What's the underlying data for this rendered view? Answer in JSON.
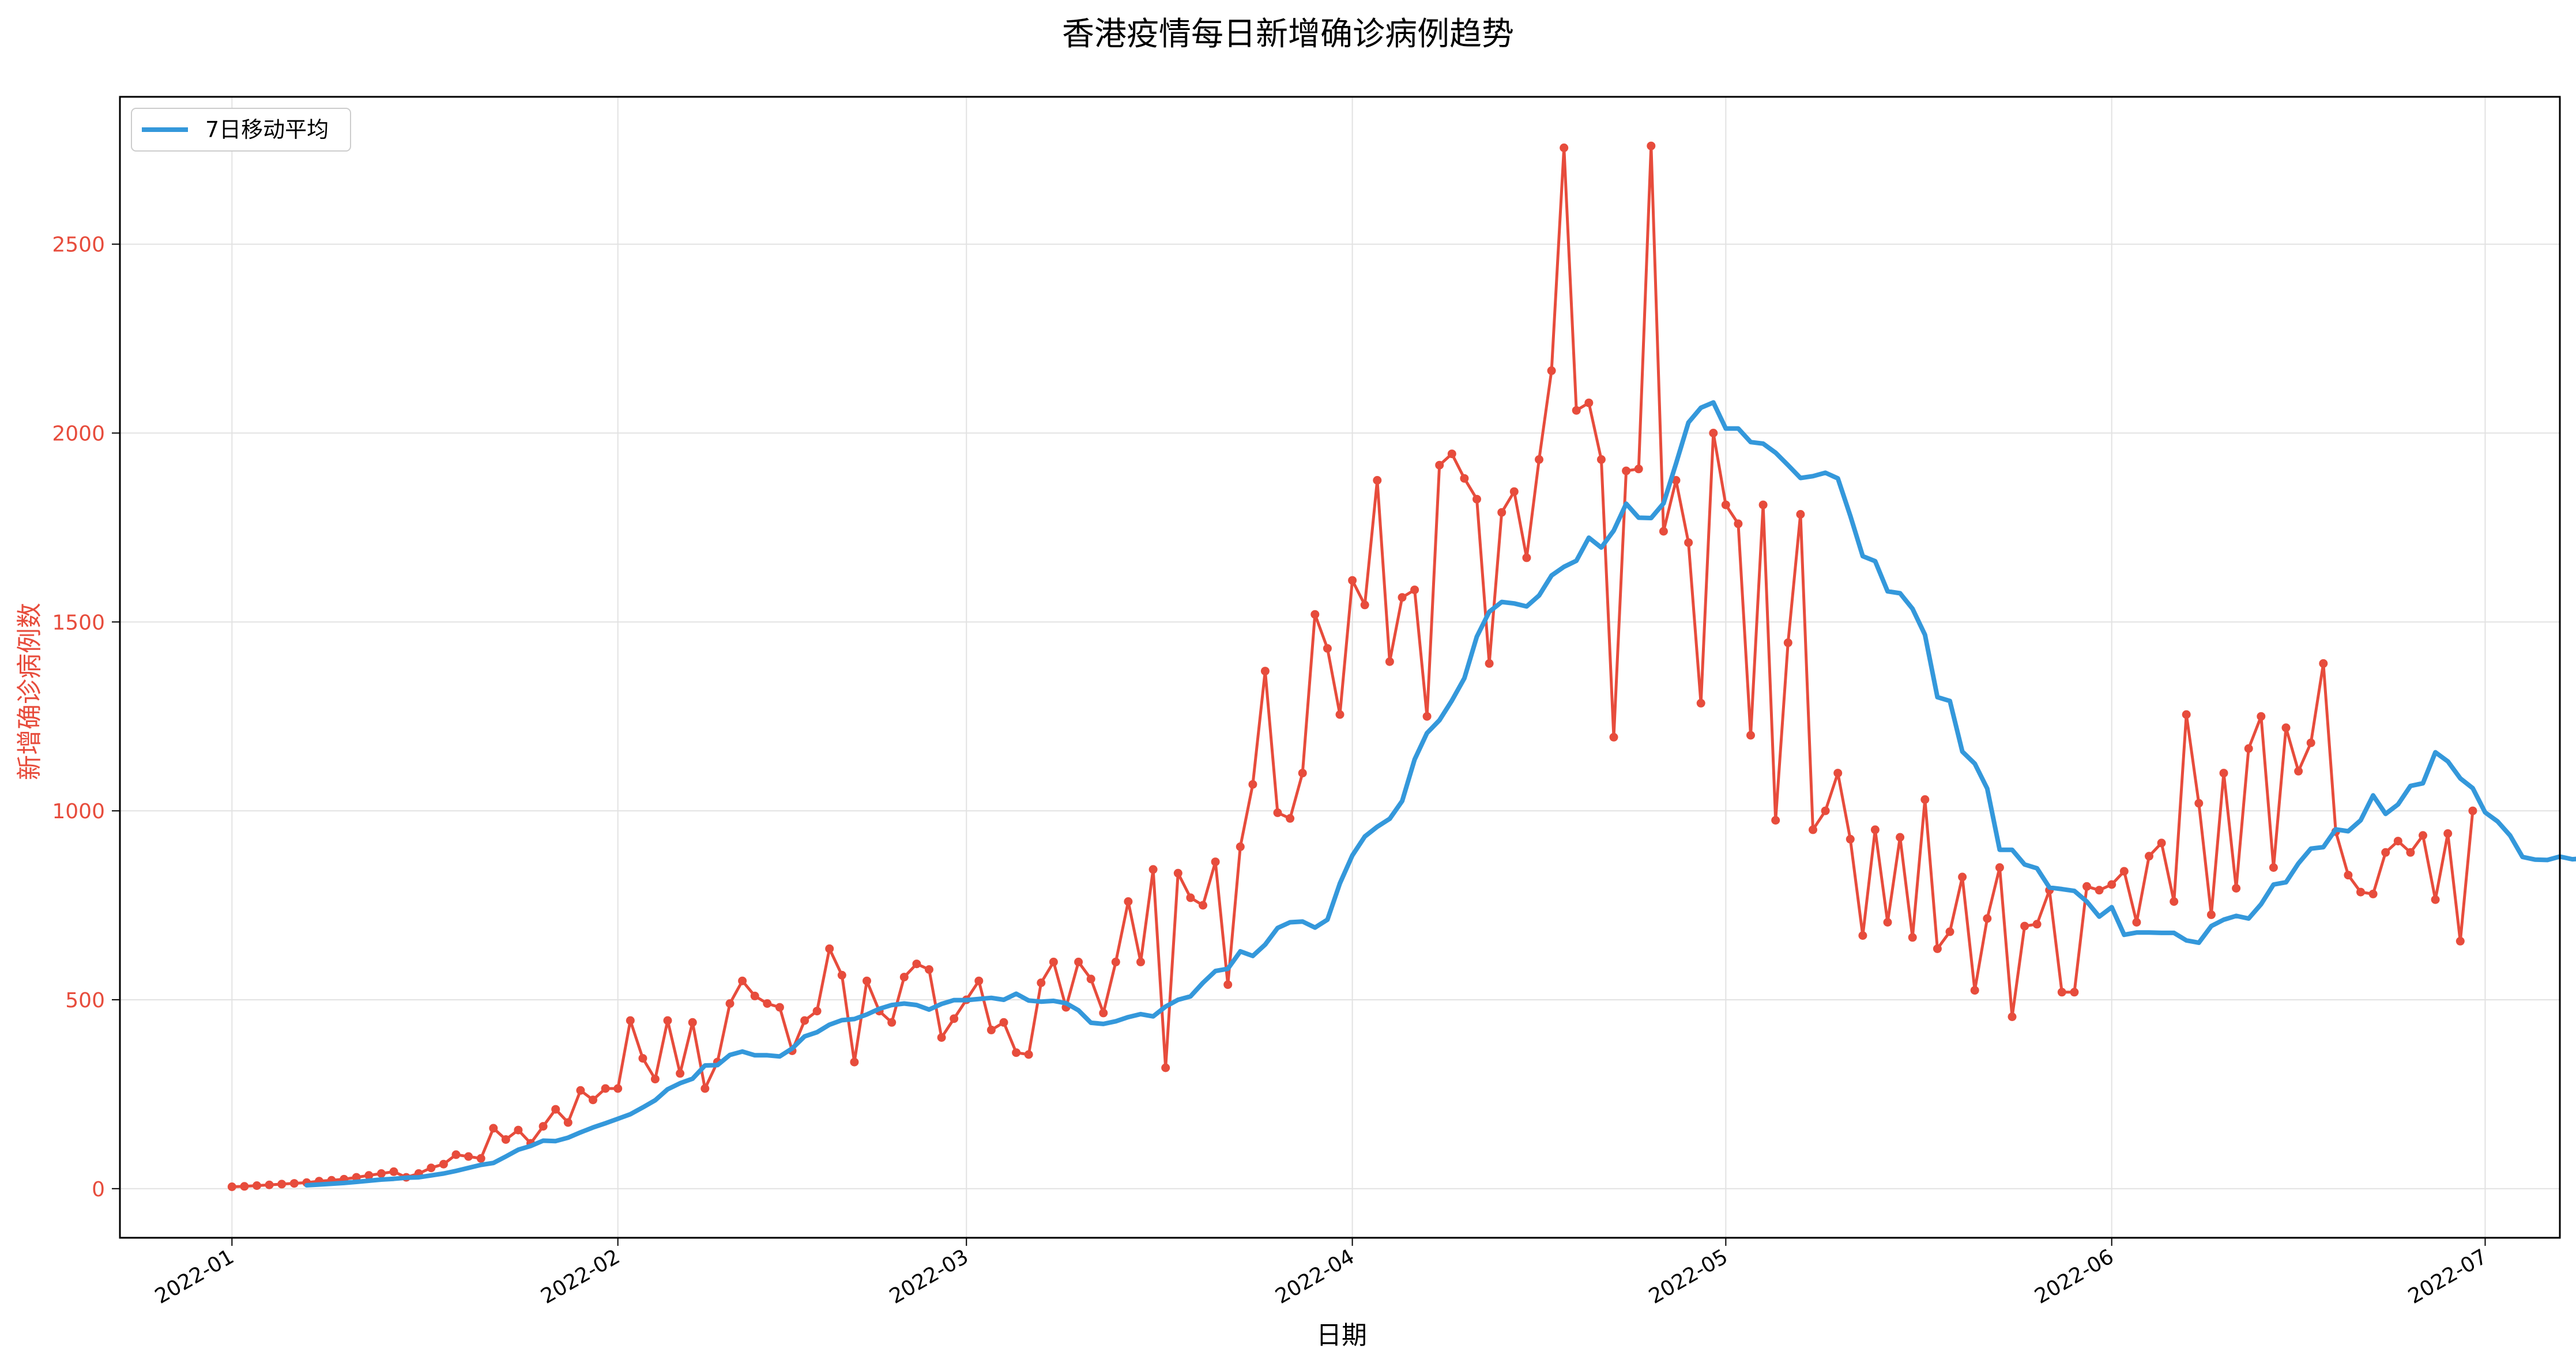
{
  "chart_data": {
    "type": "line",
    "title": "香港疫情每日新增确诊病例趋势",
    "xlabel": "日期",
    "ylabel": "新增确诊病例数",
    "x_start": "2022-01-01",
    "xlim": [
      "2021-12-23",
      "2022-07-07"
    ],
    "ylim": [
      -130,
      2890
    ],
    "y_ticks": [
      0,
      500,
      1000,
      1500,
      2000,
      2500
    ],
    "x_ticks": [
      {
        "label": "2022-01",
        "date": "2022-01-01"
      },
      {
        "label": "2022-02",
        "date": "2022-02-01"
      },
      {
        "label": "2022-03",
        "date": "2022-03-01"
      },
      {
        "label": "2022-04",
        "date": "2022-04-01"
      },
      {
        "label": "2022-05",
        "date": "2022-05-01"
      },
      {
        "label": "2022-06",
        "date": "2022-06-01"
      },
      {
        "label": "2022-07",
        "date": "2022-07-01"
      }
    ],
    "grid": true,
    "legend": {
      "position": "top-left",
      "entries": [
        "7日移动平均"
      ]
    },
    "colors": {
      "daily": "#e74c3c",
      "ma": "#3498db",
      "ylabel": "#e74c3c"
    },
    "series": [
      {
        "style": "line-markers",
        "values": [
          5,
          6,
          8,
          10,
          12,
          14,
          16,
          20,
          22,
          25,
          30,
          35,
          40,
          45,
          30,
          40,
          55,
          65,
          90,
          85,
          80,
          160,
          130,
          155,
          120,
          165,
          210,
          175,
          260,
          235,
          265,
          265,
          445,
          345,
          290,
          445,
          305,
          440,
          265,
          335,
          490,
          550,
          510,
          490,
          480,
          365,
          445,
          470,
          635,
          565,
          335,
          550,
          470,
          440,
          560,
          595,
          580,
          400,
          450,
          500,
          550,
          420,
          440,
          360,
          355,
          545,
          600,
          480,
          600,
          555,
          465,
          600,
          760,
          600,
          845,
          320,
          835,
          770,
          750,
          865,
          540,
          905,
          1070,
          1370,
          995,
          980,
          1100,
          1520,
          1430,
          1255,
          1610,
          1545,
          1875,
          1395,
          1565,
          1585,
          1250,
          1915,
          1945,
          1880,
          1825,
          1390,
          1790,
          1845,
          1670,
          1930,
          2165,
          2755,
          2060,
          2080,
          1930,
          1195,
          1900,
          1905,
          2760,
          1740,
          1875,
          1710,
          1285,
          2000,
          1810,
          1760,
          1200,
          1810,
          975,
          1445,
          1785,
          950,
          1000,
          1100,
          925,
          670,
          950,
          705,
          930,
          665,
          1030,
          635,
          680,
          825,
          525,
          715,
          850,
          455,
          695,
          700,
          790,
          520,
          520,
          800,
          790,
          805,
          840,
          705,
          880,
          915,
          760,
          1255,
          1020,
          725,
          1100,
          795,
          1165,
          1250,
          850,
          1220,
          1105,
          1180,
          1390,
          945,
          830,
          785,
          780,
          890,
          920,
          890,
          935,
          765,
          940,
          655,
          1000
        ]
      },
      {
        "name": "7日移动平均",
        "style": "line",
        "start_index": 6,
        "values": [
          9,
          11,
          13,
          15,
          18,
          21,
          24,
          26,
          29,
          30,
          35,
          40,
          47,
          55,
          63,
          68,
          85,
          103,
          113,
          127,
          126,
          135,
          149,
          162,
          173,
          185,
          197,
          215,
          234,
          263,
          279,
          291,
          326,
          327,
          354,
          363,
          353,
          353,
          350,
          371,
          403,
          414,
          434,
          446,
          449,
          461,
          476,
          486,
          490,
          486,
          474,
          489,
          499,
          499,
          502,
          505,
          500,
          516,
          498,
          495,
          497,
          491,
          472,
          439,
          436,
          443,
          454,
          462,
          456,
          482,
          500,
          509,
          545,
          576,
          582,
          628,
          616,
          646,
          690,
          705,
          707,
          691,
          712,
          808,
          882,
          932,
          958,
          979,
          1026,
          1136,
          1206,
          1240,
          1292,
          1351,
          1461,
          1527,
          1553,
          1549,
          1541,
          1570,
          1623,
          1646,
          1662,
          1723,
          1697,
          1742,
          1813,
          1776,
          1775,
          1814,
          1919,
          2028,
          2067,
          2081,
          2012,
          2012,
          1976,
          1972,
          1948,
          1915,
          1881,
          1886,
          1895,
          1880,
          1781,
          1674,
          1661,
          1581,
          1576,
          1535,
          1466,
          1301,
          1291,
          1157,
          1125,
          1059,
          897,
          897,
          858,
          848,
          797,
          793,
          788,
          760,
          720,
          745,
          672,
          678,
          678,
          677,
          677,
          657,
          651,
          695,
          712,
          722,
          715,
          753,
          805,
          811,
          861,
          900,
          904,
          951,
          946,
          975,
          1041,
          992,
          1017,
          1066,
          1073,
          1155,
          1131,
          1086,
          1060,
          996,
          972,
          935,
          878,
          871,
          870,
          879,
          872,
          874
        ]
      }
    ]
  }
}
